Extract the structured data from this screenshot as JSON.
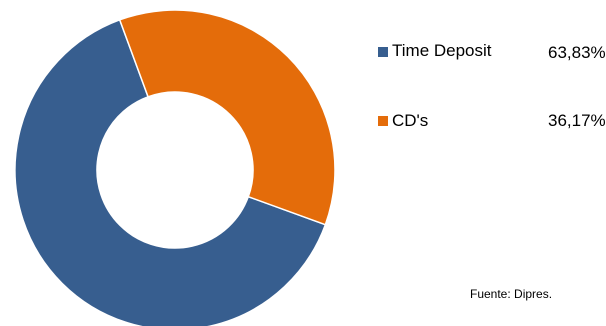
{
  "chart_data": {
    "type": "pie",
    "variant": "donut",
    "series": [
      {
        "name": "Time Deposit",
        "value": 63.83,
        "label": "63,83%",
        "color": "#375E8F"
      },
      {
        "name": "CD's",
        "value": 36.17,
        "label": "36,17%",
        "color": "#E46C0A"
      }
    ],
    "legend_placement": "right",
    "source": "Fuente: Dipres."
  }
}
